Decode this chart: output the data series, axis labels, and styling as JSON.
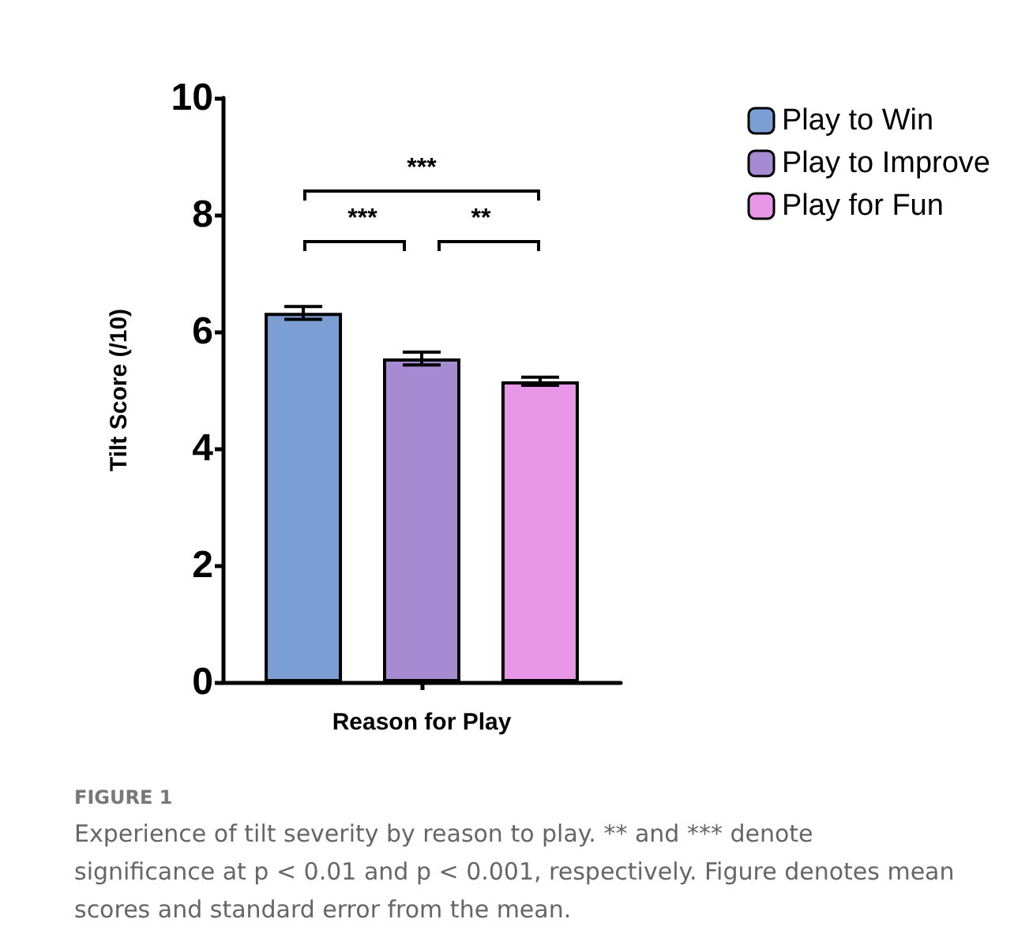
{
  "chart_data": {
    "type": "bar",
    "categories": [
      null
    ],
    "xlabel": "Reason for Play",
    "ylabel": "Tilt Score (/10)",
    "series": [
      {
        "name": "Play to Win",
        "color": "#7b9fd4",
        "values": [
          6.32
        ],
        "errors": [
          0.11
        ]
      },
      {
        "name": "Play to Improve",
        "color": "#a68ad2",
        "values": [
          5.54
        ],
        "errors": [
          0.11
        ]
      },
      {
        "name": "Play for Fun",
        "color": "#e896e8",
        "values": [
          5.15
        ],
        "errors": [
          0.07
        ]
      }
    ],
    "ylim": [
      0,
      10
    ],
    "yticks": [
      0,
      2,
      4,
      6,
      8,
      10
    ],
    "grid": false,
    "legend": "top right",
    "annotations": [
      "***",
      "***",
      "**",
      "FIGURE 1",
      "Experience of tilt severity by reason to play. ** and *** denote significance at p < 0.01 and p < 0.001, respectively. Figure denotes mean scores and standard error from the mean."
    ]
  }
}
